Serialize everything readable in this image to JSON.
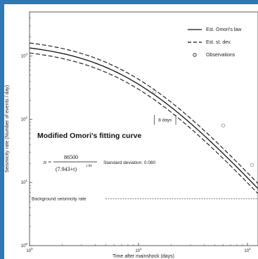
{
  "chart_data": {
    "type": "line",
    "title": "Modified Omori's fitting curve",
    "xlabel": "Time after mainshock (days)",
    "ylabel": "Seismicity rate (Number of events / day)",
    "xscale": "log",
    "yscale": "log",
    "xlim": [
      1,
      125
    ],
    "ylim": [
      1,
      5000
    ],
    "x_ticks": [
      {
        "value": 1,
        "base": "10",
        "exp": "0"
      },
      {
        "value": 10,
        "base": "10",
        "exp": "1"
      },
      {
        "value": 100,
        "base": "10",
        "exp": "2"
      }
    ],
    "y_ticks": [
      {
        "value": 1,
        "base": "10",
        "exp": "0"
      },
      {
        "value": 10,
        "base": "10",
        "exp": "1"
      },
      {
        "value": 100,
        "base": "10",
        "exp": "2"
      },
      {
        "value": 1000,
        "base": "10",
        "exp": "3"
      }
    ],
    "legend_position": "top-right",
    "legend": [
      "Est. Omori's law",
      "Est. st. dev.",
      "Observations"
    ],
    "model": {
      "K": 86500,
      "c": 7.943,
      "p": 1.9
    },
    "std_dev_factor": 1.2,
    "observations": [
      {
        "x": 14,
        "y": 270
      },
      {
        "x": 60,
        "y": 80
      },
      {
        "x": 110,
        "y": 19
      }
    ],
    "background_rate": 5.5,
    "background_label": "Background seismicity rate",
    "interval_label": "8 days",
    "interval": [
      14,
      22
    ],
    "equation": {
      "lhs": "n =",
      "numerator": "86500",
      "denominator": "(7.943+t)",
      "exponent": "1.90"
    },
    "std_text": "Standard deviation: 0.080"
  }
}
